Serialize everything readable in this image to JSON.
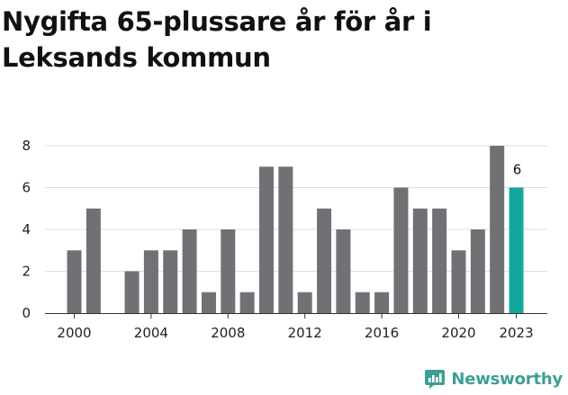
{
  "title": "Nygifta 65-plussare år för år i Leksands kommun",
  "brand": {
    "name": "Newsworthy",
    "icon": "newsworthy-logo-icon",
    "color": "#3d9f94"
  },
  "chart_data": {
    "type": "bar",
    "title": "Nygifta 65-plussare år för år i Leksands kommun",
    "xlabel": "",
    "ylabel": "",
    "x": [
      2000,
      2001,
      2002,
      2003,
      2004,
      2005,
      2006,
      2007,
      2008,
      2009,
      2010,
      2011,
      2012,
      2013,
      2014,
      2015,
      2016,
      2017,
      2018,
      2019,
      2020,
      2021,
      2022,
      2023
    ],
    "values": [
      3,
      5,
      0,
      2,
      3,
      3,
      4,
      1,
      4,
      1,
      7,
      7,
      1,
      5,
      4,
      1,
      1,
      6,
      5,
      5,
      3,
      4,
      8,
      6
    ],
    "x_tick_labels": [
      "2000",
      "2004",
      "2008",
      "2012",
      "2016",
      "2020",
      "2023"
    ],
    "y_ticks": [
      0,
      2,
      4,
      6,
      8
    ],
    "ylim": [
      0,
      8
    ],
    "grid": true,
    "highlight": {
      "x": 2023,
      "value": 6,
      "label": "6",
      "color": "#13a89e"
    },
    "bar_color": "#717075"
  }
}
